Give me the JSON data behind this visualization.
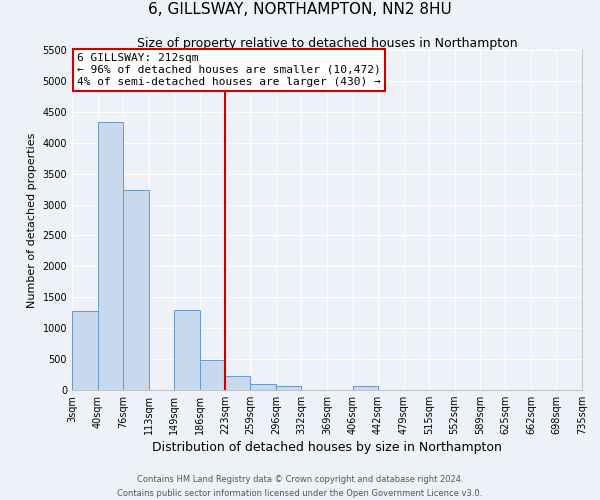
{
  "title": "6, GILLSWAY, NORTHAMPTON, NN2 8HU",
  "subtitle": "Size of property relative to detached houses in Northampton",
  "xlabel": "Distribution of detached houses by size in Northampton",
  "ylabel": "Number of detached properties",
  "footer_line1": "Contains HM Land Registry data © Crown copyright and database right 2024.",
  "footer_line2": "Contains public sector information licensed under the Open Government Licence v3.0.",
  "annotation_line1": "6 GILLSWAY: 212sqm",
  "annotation_line2": "← 96% of detached houses are smaller (10,472)",
  "annotation_line3": "4% of semi-detached houses are larger (430) →",
  "bar_color": "#c8d9ee",
  "bar_edge_color": "#6699cc",
  "vline_x": 223,
  "vline_color": "#cc0000",
  "bin_edges": [
    3,
    40,
    76,
    113,
    149,
    186,
    223,
    259,
    296,
    332,
    369,
    406,
    442,
    479,
    515,
    552,
    589,
    625,
    662,
    698,
    735
  ],
  "bin_heights": [
    1270,
    4330,
    3240,
    0,
    1290,
    490,
    230,
    90,
    60,
    0,
    0,
    60,
    0,
    0,
    0,
    0,
    0,
    0,
    0,
    0
  ],
  "ylim": [
    0,
    5500
  ],
  "yticks": [
    0,
    500,
    1000,
    1500,
    2000,
    2500,
    3000,
    3500,
    4000,
    4500,
    5000,
    5500
  ],
  "background_color": "#eef2f8",
  "grid_color": "#ffffff",
  "title_fontsize": 11,
  "subtitle_fontsize": 9,
  "xlabel_fontsize": 9,
  "ylabel_fontsize": 8,
  "tick_fontsize": 7,
  "annotation_fontsize": 8,
  "footer_fontsize": 6
}
